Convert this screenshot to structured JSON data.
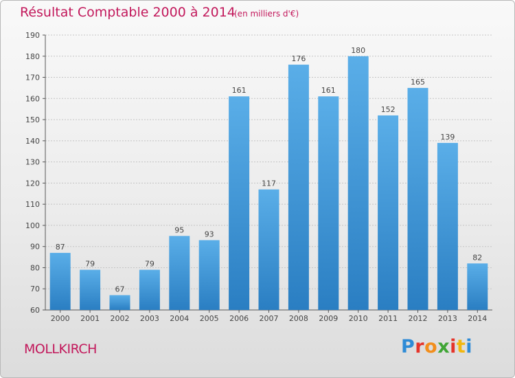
{
  "header": {
    "title": "Résultat Comptable 2000 à 2014",
    "subtitle": "(en milliers d'€)"
  },
  "footer": {
    "town": "MOLLKIRCH",
    "logo_text": "Proxiti",
    "logo_colors": [
      "#2e8bd6",
      "#e5342a",
      "#f28e1c",
      "#3fa535",
      "#e5342a",
      "#f2b70f",
      "#2e8bd6"
    ]
  },
  "chart_data": {
    "type": "bar",
    "categories": [
      "2000",
      "2001",
      "2002",
      "2003",
      "2004",
      "2005",
      "2006",
      "2007",
      "2008",
      "2009",
      "2010",
      "2011",
      "2012",
      "2013",
      "2014"
    ],
    "values": [
      87,
      79,
      67,
      79,
      95,
      93,
      161,
      117,
      176,
      161,
      180,
      152,
      165,
      139,
      82
    ],
    "title": "Résultat Comptable 2000 à 2014",
    "ylim": [
      60,
      190
    ],
    "yticks": [
      60,
      70,
      80,
      90,
      100,
      110,
      120,
      130,
      140,
      150,
      160,
      170,
      180,
      190
    ],
    "grid": "horizontal dashed",
    "bar_color_top": "#5aaee8",
    "bar_color_bottom": "#2a7ec2"
  }
}
